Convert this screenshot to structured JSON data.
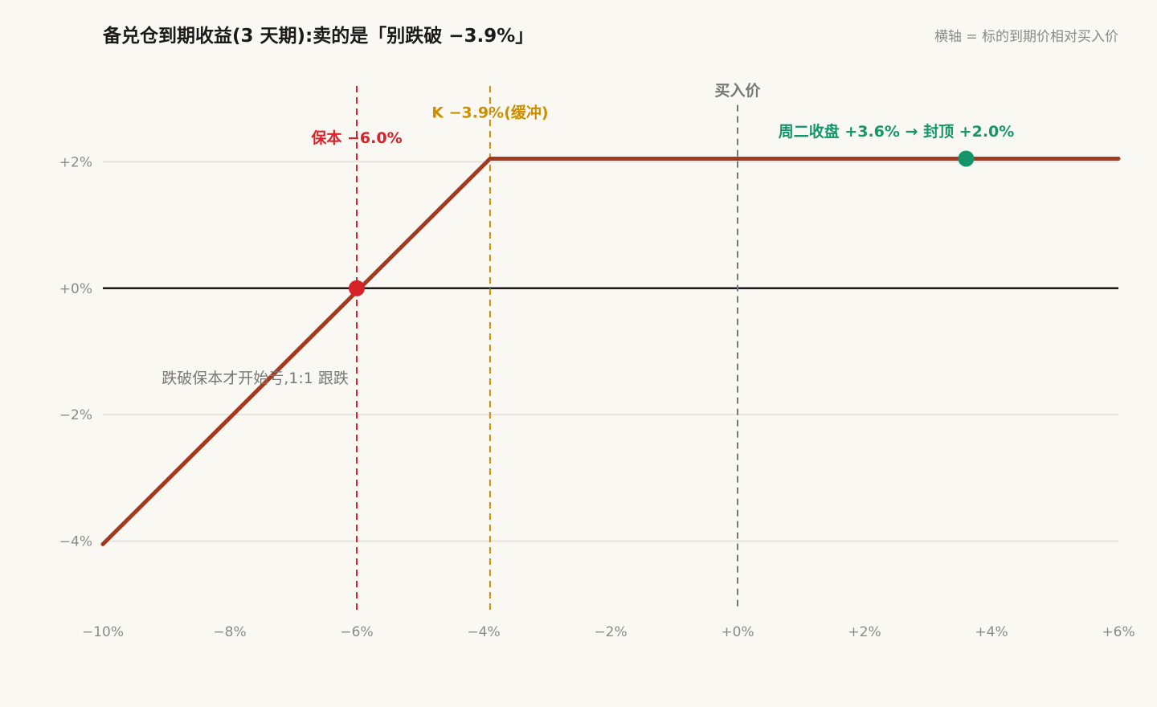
{
  "chart_data": {
    "type": "line",
    "title": "备兑仓到期收益(3 天期):卖的是「别跌破 −3.9%」",
    "subtitle": "横轴 = 标的到期价相对买入价",
    "xlim": [
      -10,
      6
    ],
    "ylim": [
      -5.1,
      3.2
    ],
    "x_ticks": [
      {
        "value": -10,
        "label": "−10%"
      },
      {
        "value": -8,
        "label": "−8%"
      },
      {
        "value": -6,
        "label": "−6%"
      },
      {
        "value": -4,
        "label": "−4%"
      },
      {
        "value": -2,
        "label": "−2%"
      },
      {
        "value": 0,
        "label": "+0%"
      },
      {
        "value": 2,
        "label": "+2%"
      },
      {
        "value": 4,
        "label": "+4%"
      },
      {
        "value": 6,
        "label": "+6%"
      }
    ],
    "y_ticks": [
      {
        "value": 2,
        "label": "+2%"
      },
      {
        "value": 0,
        "label": "+0%"
      },
      {
        "value": -2,
        "label": "−2%"
      },
      {
        "value": -4,
        "label": "−4%"
      }
    ],
    "grid": true,
    "series": [
      {
        "color": "#a3391f",
        "points": [
          [
            -10,
            -4.05
          ],
          [
            -3.9,
            2.05
          ],
          [
            6,
            2.05
          ]
        ]
      }
    ],
    "vlines": [
      {
        "x": -6.0,
        "label": "保本 −6.0%",
        "color": "#d6232a",
        "label_y": 2.3,
        "label_anchor": "middle"
      },
      {
        "x": -3.9,
        "label": "K −3.9%(缓冲)",
        "color": "#cc8f00",
        "label_y": 2.7,
        "label_anchor": "middle"
      },
      {
        "x": 0,
        "label": "买入价",
        "color": "#777777",
        "label_y": 3.05,
        "label_anchor": "middle"
      }
    ],
    "markers": [
      {
        "x": -6.0,
        "y": 0,
        "color": "#d6232a"
      },
      {
        "x": 3.6,
        "y": 2.05,
        "color": "#15956a",
        "label": "周二收盘 +3.6% → 封顶 +2.0%",
        "label_x": 2.5,
        "label_y": 2.4
      }
    ],
    "annotations": [
      {
        "text": "跌破保本才开始亏,1:1 跟跌",
        "x": -7.6,
        "y": -1.5
      }
    ]
  }
}
